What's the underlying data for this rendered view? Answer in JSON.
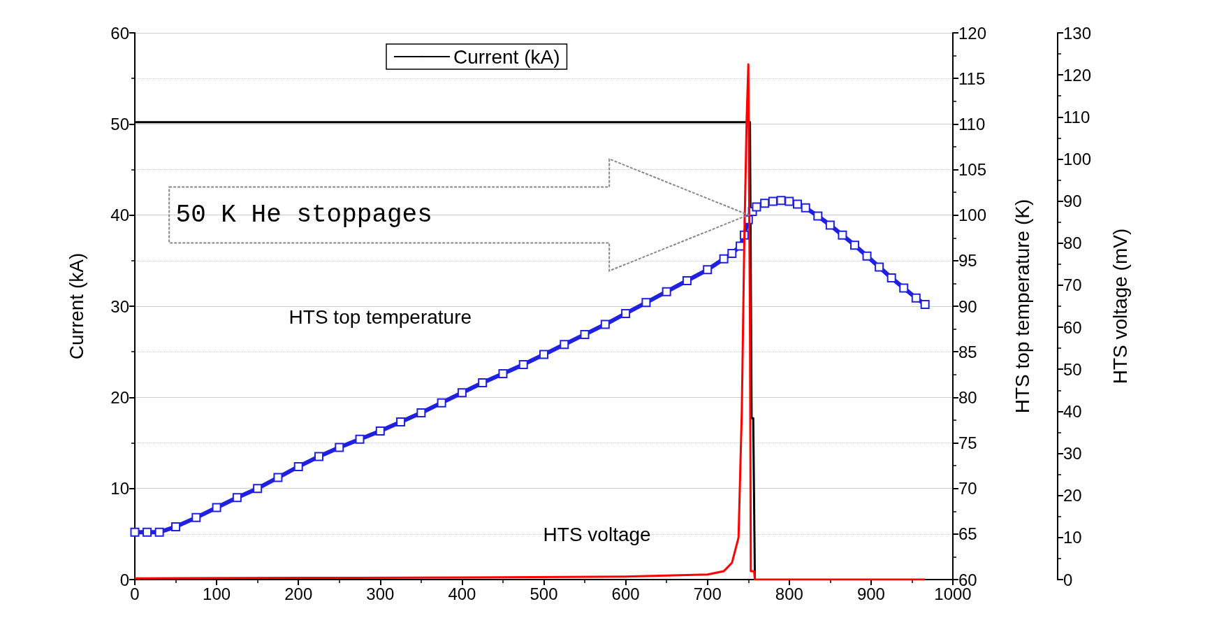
{
  "chart_data": {
    "type": "line",
    "xlim": [
      0,
      1000
    ],
    "xticks": [
      0,
      100,
      200,
      300,
      400,
      500,
      600,
      700,
      800,
      900,
      1000
    ],
    "ylabel": "Current (kA)",
    "ylim": [
      0,
      60
    ],
    "yticks": [
      0,
      10,
      20,
      30,
      40,
      50,
      60
    ],
    "y2label": "HTS top temperature (K)",
    "y2lim": [
      60,
      120
    ],
    "y2ticks": [
      60,
      65,
      70,
      75,
      80,
      85,
      90,
      95,
      100,
      105,
      110,
      115,
      120
    ],
    "y3label": "HTS voltage (mV)",
    "y3lim": [
      0,
      130
    ],
    "y3ticks": [
      0,
      10,
      20,
      30,
      40,
      50,
      60,
      70,
      80,
      90,
      100,
      110,
      120,
      130
    ],
    "grid": "y",
    "legend": "top",
    "series": [
      {
        "name": "Current (kA)",
        "color": "#000000",
        "marker": "none",
        "x": [
          0,
          100,
          200,
          300,
          400,
          500,
          600,
          700,
          752,
          754,
          756,
          758
        ],
        "values": [
          50.2,
          50.2,
          50.2,
          50.2,
          50.2,
          50.2,
          50.2,
          50.2,
          50.2,
          17.7,
          17.7,
          0
        ]
      },
      {
        "color": "#2020e0",
        "axis": "y2",
        "marker": "square",
        "x": [
          0,
          15,
          30,
          50,
          75,
          100,
          125,
          150,
          175,
          200,
          225,
          250,
          275,
          300,
          325,
          350,
          375,
          400,
          425,
          450,
          475,
          500,
          525,
          550,
          575,
          600,
          625,
          650,
          675,
          700,
          720,
          730,
          740,
          745,
          750,
          755,
          760,
          770,
          780,
          790,
          800,
          810,
          820,
          835,
          850,
          865,
          880,
          895,
          910,
          925,
          940,
          955,
          966
        ],
        "values": [
          65.2,
          65.2,
          65.2,
          65.8,
          66.8,
          67.9,
          69.0,
          70.0,
          71.2,
          72.4,
          73.5,
          74.5,
          75.4,
          76.3,
          77.3,
          78.3,
          79.4,
          80.5,
          81.6,
          82.6,
          83.6,
          84.7,
          85.8,
          86.9,
          88.0,
          89.2,
          90.4,
          91.6,
          92.8,
          94.0,
          95.2,
          95.8,
          96.6,
          97.8,
          99.5,
          100.4,
          100.9,
          101.3,
          101.5,
          101.6,
          101.5,
          101.2,
          100.8,
          99.9,
          98.9,
          97.8,
          96.7,
          95.5,
          94.3,
          93.1,
          92.0,
          90.9,
          90.2
        ]
      },
      {
        "color": "#ff0000",
        "axis": "y3",
        "marker": "none",
        "x": [
          0,
          200,
          400,
          600,
          700,
          720,
          730,
          738,
          742,
          745,
          748,
          750,
          752,
          753,
          757,
          758,
          966
        ],
        "values": [
          0.3,
          0.4,
          0.5,
          0.7,
          1.2,
          2,
          4,
          10,
          40,
          80,
          110,
          122.5,
          60,
          2,
          2,
          0,
          0
        ]
      }
    ],
    "annotations": [
      "HTS top temperature",
      "HTS voltage",
      "50 K He stoppages"
    ]
  }
}
